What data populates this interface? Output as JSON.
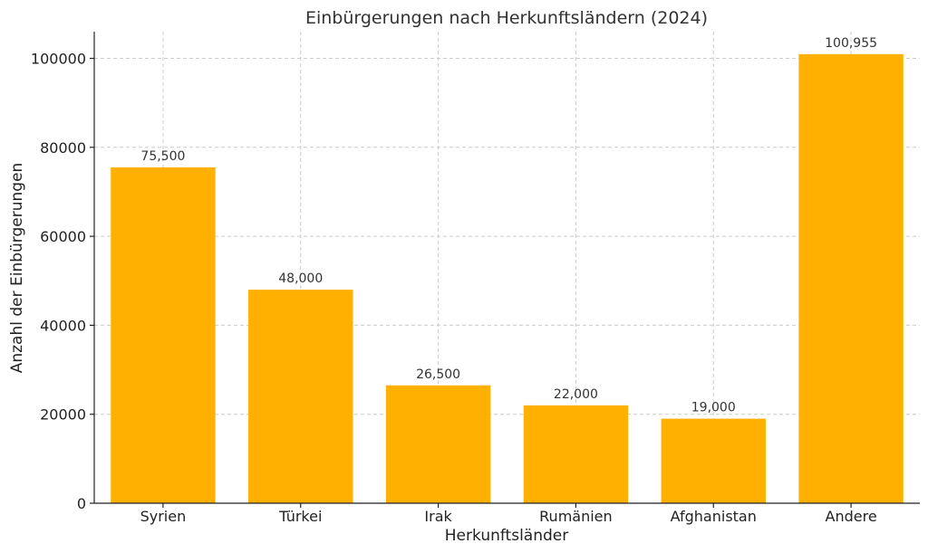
{
  "chart_data": {
    "type": "bar",
    "title": "Einbürgerungen nach Herkunftsländern (2024)",
    "xlabel": "Herkunftsländer",
    "ylabel": "Anzahl der Einbürgerungen",
    "categories": [
      "Syrien",
      "Türkei",
      "Irak",
      "Rumänien",
      "Afghanistan",
      "Andere"
    ],
    "values": [
      75500,
      48000,
      26500,
      22000,
      19000,
      100955
    ],
    "value_labels": [
      "75,500",
      "48,000",
      "26,500",
      "22,000",
      "19,000",
      "100,955"
    ],
    "y_ticks": [
      0,
      20000,
      40000,
      60000,
      80000,
      100000
    ],
    "ylim": [
      0,
      106000
    ],
    "grid": true,
    "bar_color": "#FFB000"
  }
}
